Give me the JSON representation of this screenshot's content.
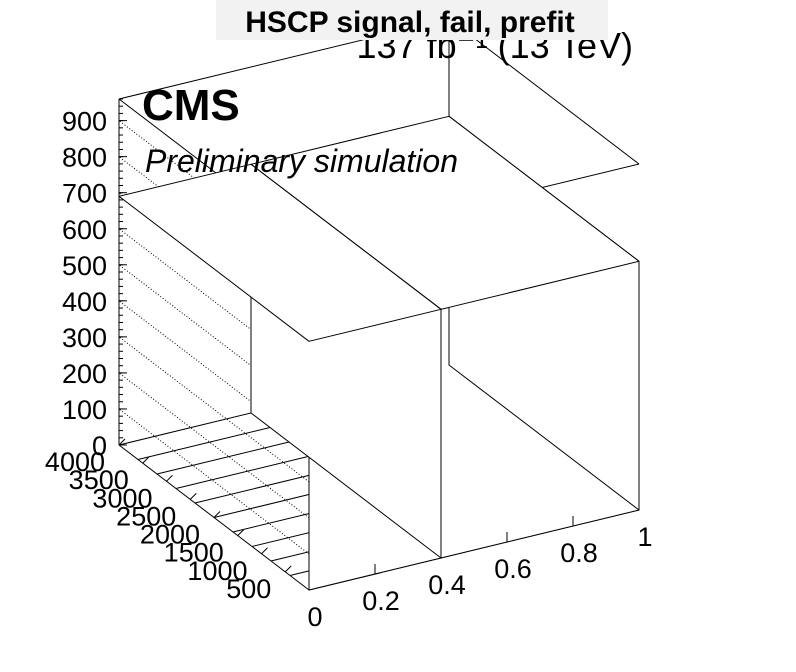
{
  "chart_data": {
    "type": "bar",
    "title": "HSCP signal, fail, prefit",
    "lumi_label": "137 fb⁻¹ (13 TeV)",
    "experiment_label": "CMS",
    "status_label": "Preliminary simulation",
    "x_ticks": [
      "0",
      "0.2",
      "0.4",
      "0.6",
      "0.8",
      "1"
    ],
    "y_ticks": [
      "500",
      "1000",
      "1500",
      "2000",
      "2500",
      "3000",
      "3500",
      "4000"
    ],
    "z_ticks": [
      "0",
      "100",
      "200",
      "300",
      "400",
      "500",
      "600",
      "700",
      "800",
      "900"
    ],
    "xlim": [
      0,
      1
    ],
    "ylim": [
      0,
      4000
    ],
    "zlim": [
      0,
      960
    ],
    "bars": [
      {
        "x_range": [
          0.0,
          0.4
        ],
        "y_range": [
          0,
          4000
        ],
        "value": 690
      },
      {
        "x_range": [
          0.4,
          1.0
        ],
        "y_range": [
          0,
          4000
        ],
        "value": 690
      }
    ],
    "grid": true
  }
}
